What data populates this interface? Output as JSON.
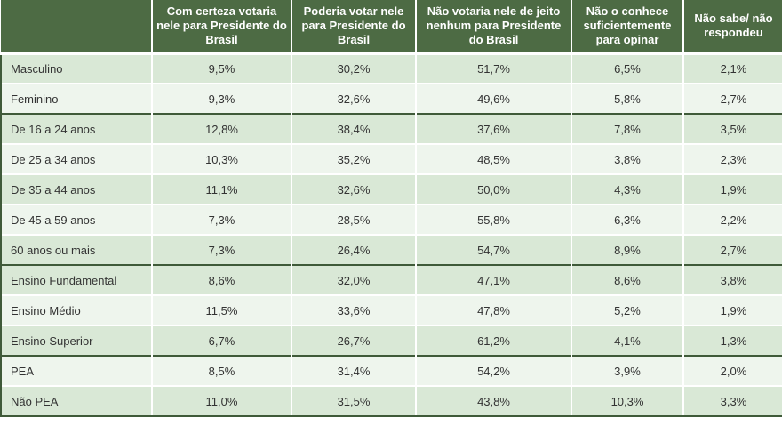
{
  "chart_data": {
    "type": "table",
    "columns": [
      "",
      "Com certeza votaria nele para Presidente do Brasil",
      "Poderia votar nele para Presidente do Brasil",
      "Não votaria nele de jeito nenhum para Presidente do Brasil",
      "Não o conhece suficientemente para opinar",
      "Não sabe/ não respondeu"
    ],
    "unit": "%",
    "decimal_separator": ",",
    "row_groups": [
      {
        "rows": [
          {
            "label": "Masculino",
            "values": [
              "9,5%",
              "30,2%",
              "51,7%",
              "6,5%",
              "2,1%"
            ],
            "shade": "sage"
          },
          {
            "label": "Feminino",
            "values": [
              "9,3%",
              "32,6%",
              "49,6%",
              "5,8%",
              "2,7%"
            ],
            "shade": "light"
          }
        ]
      },
      {
        "rows": [
          {
            "label": "De 16 a 24 anos",
            "values": [
              "12,8%",
              "38,4%",
              "37,6%",
              "7,8%",
              "3,5%"
            ],
            "shade": "sage"
          },
          {
            "label": "De 25 a 34 anos",
            "values": [
              "10,3%",
              "35,2%",
              "48,5%",
              "3,8%",
              "2,3%"
            ],
            "shade": "light"
          },
          {
            "label": "De 35 a 44 anos",
            "values": [
              "11,1%",
              "32,6%",
              "50,0%",
              "4,3%",
              "1,9%"
            ],
            "shade": "sage"
          },
          {
            "label": "De 45 a 59 anos",
            "values": [
              "7,3%",
              "28,5%",
              "55,8%",
              "6,3%",
              "2,2%"
            ],
            "shade": "light"
          },
          {
            "label": "60 anos ou mais",
            "values": [
              "7,3%",
              "26,4%",
              "54,7%",
              "8,9%",
              "2,7%"
            ],
            "shade": "sage"
          }
        ]
      },
      {
        "rows": [
          {
            "label": "Ensino Fundamental",
            "values": [
              "8,6%",
              "32,0%",
              "47,1%",
              "8,6%",
              "3,8%"
            ],
            "shade": "sage"
          },
          {
            "label": "Ensino Médio",
            "values": [
              "11,5%",
              "33,6%",
              "47,8%",
              "5,2%",
              "1,9%"
            ],
            "shade": "light"
          },
          {
            "label": "Ensino Superior",
            "values": [
              "6,7%",
              "26,7%",
              "61,2%",
              "4,1%",
              "1,3%"
            ],
            "shade": "sage"
          }
        ]
      },
      {
        "rows": [
          {
            "label": "PEA",
            "values": [
              "8,5%",
              "31,4%",
              "54,2%",
              "3,9%",
              "2,0%"
            ],
            "shade": "light"
          },
          {
            "label": "Não PEA",
            "values": [
              "11,0%",
              "31,5%",
              "43,8%",
              "10,3%",
              "3,3%"
            ],
            "shade": "sage"
          }
        ]
      }
    ]
  },
  "colors": {
    "page_bg": "#ffffff",
    "header_bg": "#4d6b44",
    "header_text": "#ffffff",
    "row_sage": "#d9e8d6",
    "row_light": "#eef5ed",
    "group_separator": "#3f5a39",
    "cell_divider": "#ffffff",
    "body_text": "#333333"
  }
}
